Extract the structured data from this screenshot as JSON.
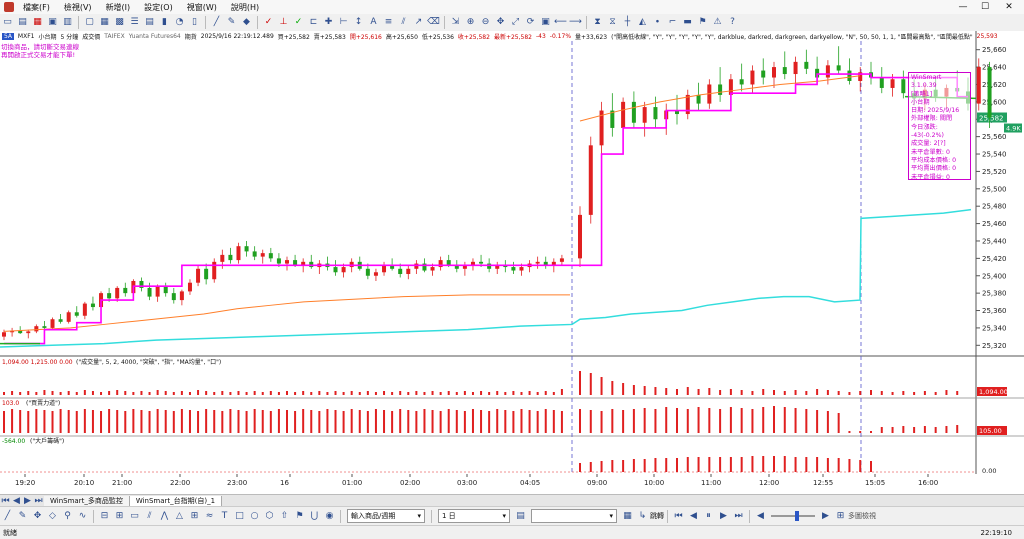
{
  "menu": {
    "items": [
      "檔案(F)",
      "檢視(V)",
      "新增(I)",
      "設定(O)",
      "視窗(W)",
      "說明(H)"
    ],
    "win_controls": [
      "—",
      "☐",
      "✕"
    ]
  },
  "info": {
    "symbol_badge": "5A",
    "symbol_code": "MXF1",
    "symbol_name": "小台期",
    "interval": "5 分鐘",
    "indicator_name": "成交價",
    "exchange": "TAIFEX",
    "broker": "Yuanta Futures64",
    "period_label": "期貨",
    "timestamp": "2025/9/16  22:19:12.489",
    "buy": "買+25,582",
    "sell": "賣+25,583",
    "open": "開+25,616",
    "high": "高+25,650",
    "low": "低+25,536",
    "close": "收+25,582",
    "last": "最新+25,582",
    "change": "-43",
    "change_pct": "-0.17%",
    "volume": "量+33,623",
    "params": "(\"開高低收線\", \"Y\", \"Y\", \"Y\", \"Y\", \"Y\", darkblue, darkred, darkgreen, darkyellow, \"N\", 50, 50, 1, 1, \"區間最高點\", \"區間最低點\"",
    "params_end": "25,593"
  },
  "warning": [
    "切換商品，請切斷交易連線",
    "再開啟正式交易才能下單!"
  ],
  "popup": {
    "lines": [
      "WinSmart 3.1.0.39",
      "[策略1]",
      "小台期",
      "日期: 2025/9/16",
      "外部權限: 關閉",
      "今日漲跌: -43(-0.2%)",
      "成交量: 2[?]",
      "未平倉單數: 0",
      "平均成本價格: 0",
      "平均賣出價格: 0",
      "未平倉損益: 0",
      "停利損出場損益: 0",
      "平倉損益: 0"
    ]
  },
  "panes": {
    "volume_label": "1,094.00   1,215.00   0.00",
    "volume_params": "(\"成交量\", 5, 2, 4000, \"突破\", \"指\", \"MA均量\", \"口\")",
    "power_label": "103.0",
    "power_params": "(\"買賣力道\")",
    "large_label": "-564.00",
    "large_params": "(\"大戶籌碼\")"
  },
  "price_axis": {
    "labels": [
      "25,660",
      "25,640",
      "25,620",
      "25,600",
      "25,580",
      "25,560",
      "25,540",
      "25,520",
      "25,500",
      "25,480",
      "25,460",
      "25,440",
      "25,420",
      "25,400",
      "25,380",
      "25,360",
      "25,340",
      "25,320"
    ],
    "current_price": "25,582",
    "current_tag": "4.9K",
    "volume_value": "1,094.00",
    "power_value": "105.00",
    "large_value": "0.00"
  },
  "time_axis": [
    "19:20",
    "20:10",
    "21:00",
    "22:00",
    "23:00",
    "16",
    "01:00",
    "02:00",
    "03:00",
    "04:05",
    "09:00",
    "10:00",
    "11:00",
    "12:00",
    "12:55",
    "15:05",
    "16:00"
  ],
  "bottom_tabs": [
    "WinSmart_多商品監控",
    "WinSmart_台指期(自)_1"
  ],
  "toolbar2": {
    "combo1": "輸入商品/週期",
    "combo2": "1 日",
    "combo3": "",
    "jump_label": "跳轉",
    "multi_label": "多圖檢視"
  },
  "status": {
    "left": "就緒",
    "right": "22:19:10"
  },
  "chart_data": {
    "type": "candlestick",
    "ylim": [
      25310,
      25670
    ],
    "up_color": "#e02020",
    "down_color": "#20a020",
    "candles": [
      [
        25330,
        25338,
        25326,
        25335
      ],
      [
        25335,
        25340,
        25330,
        25337
      ],
      [
        25337,
        25342,
        25333,
        25334
      ],
      [
        25334,
        25338,
        25328,
        25336
      ],
      [
        25336,
        25344,
        25334,
        25342
      ],
      [
        25342,
        25348,
        25338,
        25340
      ],
      [
        25340,
        25352,
        25338,
        25350
      ],
      [
        25350,
        25356,
        25345,
        25347
      ],
      [
        25347,
        25360,
        25345,
        25358
      ],
      [
        25358,
        25365,
        25352,
        25354
      ],
      [
        25354,
        25370,
        25350,
        25368
      ],
      [
        25368,
        25376,
        25360,
        25364
      ],
      [
        25364,
        25382,
        25362,
        25380
      ],
      [
        25380,
        25386,
        25370,
        25374
      ],
      [
        25374,
        25388,
        25370,
        25386
      ],
      [
        25386,
        25392,
        25376,
        25380
      ],
      [
        25380,
        25396,
        25378,
        25394
      ],
      [
        25394,
        25398,
        25382,
        25386
      ],
      [
        25386,
        25392,
        25372,
        25376
      ],
      [
        25376,
        25390,
        25370,
        25388
      ],
      [
        25388,
        25392,
        25376,
        25380
      ],
      [
        25380,
        25386,
        25368,
        25372
      ],
      [
        25372,
        25384,
        25366,
        25382
      ],
      [
        25382,
        25396,
        25378,
        25392
      ],
      [
        25392,
        25412,
        25388,
        25408
      ],
      [
        25408,
        25414,
        25390,
        25396
      ],
      [
        25396,
        25420,
        25392,
        25416
      ],
      [
        25416,
        25430,
        25408,
        25424
      ],
      [
        25424,
        25432,
        25414,
        25418
      ],
      [
        25418,
        25438,
        25414,
        25434
      ],
      [
        25434,
        25440,
        25422,
        25428
      ],
      [
        25428,
        25434,
        25418,
        25422
      ],
      [
        25422,
        25430,
        25414,
        25426
      ],
      [
        25426,
        25432,
        25416,
        25420
      ],
      [
        25420,
        25426,
        25410,
        25414
      ],
      [
        25414,
        25422,
        25406,
        25418
      ],
      [
        25418,
        25424,
        25410,
        25412
      ],
      [
        25412,
        25420,
        25404,
        25416
      ],
      [
        25416,
        25424,
        25408,
        25410
      ],
      [
        25410,
        25418,
        25402,
        25414
      ],
      [
        25414,
        25422,
        25406,
        25410
      ],
      [
        25410,
        25418,
        25400,
        25404
      ],
      [
        25404,
        25414,
        25398,
        25410
      ],
      [
        25410,
        25420,
        25404,
        25416
      ],
      [
        25416,
        25422,
        25406,
        25408
      ],
      [
        25408,
        25414,
        25396,
        25400
      ],
      [
        25400,
        25408,
        25394,
        25404
      ],
      [
        25404,
        25416,
        25400,
        25412
      ],
      [
        25412,
        25420,
        25406,
        25408
      ],
      [
        25408,
        25414,
        25398,
        25402
      ],
      [
        25402,
        25412,
        25396,
        25408
      ],
      [
        25408,
        25418,
        25402,
        25414
      ],
      [
        25414,
        25420,
        25404,
        25406
      ],
      [
        25406,
        25414,
        25400,
        25410
      ],
      [
        25410,
        25422,
        25406,
        25418
      ],
      [
        25418,
        25424,
        25410,
        25412
      ],
      [
        25412,
        25418,
        25404,
        25408
      ],
      [
        25408,
        25416,
        25400,
        25412
      ],
      [
        25412,
        25420,
        25406,
        25416
      ],
      [
        25416,
        25424,
        25410,
        25414
      ],
      [
        25414,
        25420,
        25404,
        25408
      ],
      [
        25408,
        25416,
        25402,
        25412
      ],
      [
        25412,
        25418,
        25404,
        25410
      ],
      [
        25410,
        25416,
        25402,
        25406
      ],
      [
        25406,
        25414,
        25400,
        25410
      ],
      [
        25410,
        25418,
        25404,
        25414
      ],
      [
        25414,
        25422,
        25408,
        25416
      ],
      [
        25416,
        25422,
        25408,
        25412
      ],
      [
        25412,
        25420,
        25404,
        25416
      ],
      [
        25416,
        25424,
        25412,
        25420
      ],
      [
        25420,
        25480,
        25410,
        25470
      ],
      [
        25470,
        25560,
        25460,
        25550
      ],
      [
        25550,
        25600,
        25520,
        25590
      ],
      [
        25590,
        25610,
        25560,
        25570
      ],
      [
        25570,
        25605,
        25560,
        25600
      ],
      [
        25600,
        25612,
        25570,
        25576
      ],
      [
        25576,
        25600,
        25560,
        25594
      ],
      [
        25594,
        25606,
        25570,
        25580
      ],
      [
        25580,
        25598,
        25562,
        25590
      ],
      [
        25590,
        25608,
        25574,
        25586
      ],
      [
        25586,
        25614,
        25580,
        25608
      ],
      [
        25608,
        25622,
        25590,
        25598
      ],
      [
        25598,
        25626,
        25592,
        25620
      ],
      [
        25620,
        25640,
        25600,
        25608
      ],
      [
        25608,
        25632,
        25602,
        25626
      ],
      [
        25626,
        25644,
        25612,
        25620
      ],
      [
        25620,
        25642,
        25610,
        25636
      ],
      [
        25636,
        25650,
        25620,
        25628
      ],
      [
        25628,
        25646,
        25616,
        25640
      ],
      [
        25640,
        25658,
        25626,
        25632
      ],
      [
        25632,
        25652,
        25620,
        25646
      ],
      [
        25646,
        25660,
        25632,
        25638
      ],
      [
        25638,
        25652,
        25622,
        25628
      ],
      [
        25628,
        25648,
        25620,
        25642
      ],
      [
        25642,
        25664,
        25632,
        25636
      ],
      [
        25636,
        25650,
        25620,
        25624
      ],
      [
        25624,
        25640,
        25612,
        25634
      ],
      [
        25634,
        25646,
        25620,
        25628
      ],
      [
        25628,
        25640,
        25610,
        25616
      ],
      [
        25616,
        25632,
        25606,
        25626
      ],
      [
        25626,
        25636,
        25604,
        25610
      ],
      [
        25610,
        25626,
        25596,
        25604
      ],
      [
        25604,
        25620,
        25590,
        25614
      ],
      [
        25614,
        25630,
        25600,
        25606
      ],
      [
        25606,
        25620,
        25592,
        25616
      ],
      [
        25616,
        25636,
        25604,
        25612
      ],
      [
        25612,
        25628,
        25590,
        25598
      ],
      [
        25598,
        25650,
        25590,
        25640
      ],
      [
        25640,
        25646,
        25570,
        25582
      ]
    ],
    "ma_orange": [
      25336,
      25338,
      25340,
      25344,
      25348,
      25352,
      25356,
      25362,
      25366,
      25370,
      25372,
      25374,
      25376,
      25377,
      25378,
      25378,
      25378,
      25378,
      25578,
      25590,
      25600,
      25608,
      25614,
      25620,
      25624,
      25630
    ],
    "ma_magenta_steps": [
      [
        0,
        25322
      ],
      [
        5,
        25338
      ],
      [
        9,
        25346
      ],
      [
        12,
        25372
      ],
      [
        16,
        25388
      ],
      [
        22,
        25412
      ],
      [
        70,
        25412
      ],
      [
        72,
        25540
      ],
      [
        74,
        25570
      ],
      [
        78,
        25590
      ],
      [
        84,
        25610
      ],
      [
        90,
        25620
      ],
      [
        92,
        25632
      ],
      [
        97,
        25628
      ],
      [
        103,
        25628
      ],
      [
        105,
        25606
      ]
    ],
    "cyan_line": [
      25318,
      25320,
      25322,
      25326,
      25328,
      25330,
      25332,
      25334,
      25336,
      25338,
      25342,
      25344,
      25350,
      25352,
      25356,
      25358,
      25360,
      25366,
      25370,
      25374,
      25376,
      25376,
      25370,
      25372,
      25466,
      25468,
      25470,
      25472,
      25476
    ],
    "green_line": [
      25322,
      25322,
      25322,
      25600,
      25606,
      25604
    ],
    "volume_bars": [
      3,
      4,
      3,
      4,
      3,
      5,
      4,
      3,
      4,
      3,
      5,
      4,
      3,
      4,
      5,
      4,
      3,
      4,
      3,
      5,
      4,
      3,
      4,
      3,
      5,
      4,
      3,
      4,
      3,
      4,
      3,
      4,
      3,
      4,
      3,
      4,
      3,
      4,
      3,
      4,
      3,
      4,
      3,
      4,
      3,
      4,
      3,
      4,
      3,
      4,
      3,
      4,
      3,
      4,
      3,
      4,
      3,
      4,
      3,
      4,
      3,
      4,
      3,
      4,
      3,
      4,
      3,
      4,
      3,
      6,
      24,
      22,
      18,
      14,
      12,
      10,
      9,
      8,
      7,
      6,
      8,
      6,
      7,
      5,
      6,
      5,
      4,
      6,
      5,
      4,
      5,
      4,
      6,
      5,
      4,
      3,
      4,
      5,
      4,
      3,
      4,
      3,
      4,
      3,
      5,
      4
    ],
    "power_bars": [
      22,
      24,
      23,
      22,
      24,
      23,
      22,
      24,
      23,
      22,
      24,
      23,
      22,
      24,
      23,
      22,
      24,
      23,
      22,
      24,
      23,
      22,
      24,
      23,
      22,
      24,
      23,
      22,
      24,
      23,
      22,
      24,
      23,
      22,
      24,
      23,
      22,
      24,
      23,
      22,
      24,
      23,
      22,
      24,
      23,
      22,
      24,
      23,
      22,
      24,
      23,
      22,
      24,
      23,
      22,
      24,
      23,
      22,
      24,
      23,
      22,
      24,
      23,
      22,
      24,
      23,
      22,
      24,
      23,
      22,
      24,
      23,
      22,
      24,
      23,
      24,
      25,
      24,
      26,
      25,
      24,
      26,
      25,
      24,
      26,
      25,
      24,
      26,
      27,
      26,
      25,
      24,
      23,
      22,
      20,
      2,
      2,
      2,
      6,
      6,
      7,
      6,
      7,
      6,
      7,
      8
    ],
    "large_bars": [
      0,
      0,
      0,
      0,
      0,
      0,
      0,
      0,
      0,
      0,
      0,
      0,
      0,
      0,
      0,
      0,
      0,
      0,
      0,
      0,
      0,
      0,
      0,
      0,
      0,
      0,
      0,
      0,
      0,
      0,
      0,
      0,
      0,
      0,
      0,
      0,
      0,
      0,
      0,
      0,
      0,
      0,
      0,
      0,
      0,
      0,
      0,
      0,
      0,
      0,
      0,
      0,
      0,
      0,
      0,
      0,
      0,
      0,
      0,
      0,
      0,
      0,
      0,
      0,
      0,
      0,
      0,
      0,
      0,
      0,
      9,
      10,
      11,
      12,
      12,
      13,
      13,
      14,
      14,
      14,
      15,
      15,
      15,
      15,
      15,
      15,
      16,
      16,
      16,
      16,
      15,
      15,
      15,
      14,
      14,
      13,
      12,
      11,
      0,
      0,
      0,
      0,
      0,
      0,
      0,
      0
    ]
  }
}
